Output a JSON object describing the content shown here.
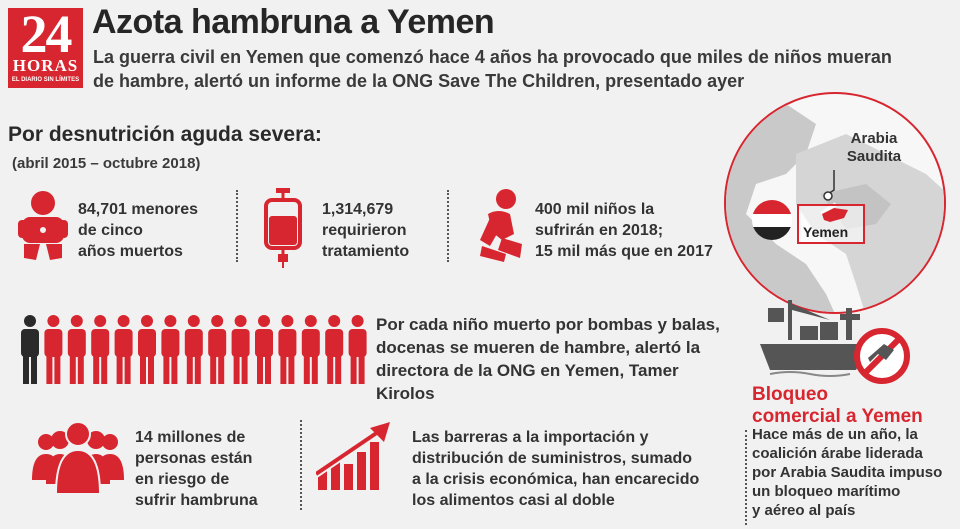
{
  "logo": {
    "number": "24",
    "word": "HORAS",
    "tagline": "EL DIARIO SIN LÍMITES"
  },
  "header": {
    "title": "Azota hambruna a Yemen",
    "lead": "La guerra civil en Yemen que comenzó hace 4 años ha provocado que miles de niños mueran de hambre, alertó un informe de la ONG Save The Children, presentado ayer"
  },
  "section": {
    "title": "Por desnutrición aguda severa:",
    "period": "(abril 2015 – octubre 2018)"
  },
  "stats": [
    {
      "icon": "baby-icon",
      "lines": [
        "84,701 menores",
        "de cinco",
        "años muertos"
      ]
    },
    {
      "icon": "iv-bag-icon",
      "lines": [
        "1,314,679",
        "requirieron",
        "tratamiento"
      ]
    },
    {
      "icon": "child-sitting-icon",
      "lines": [
        "400 mil niños la",
        "sufrirán en 2018;",
        "15 mil más que en 2017"
      ]
    }
  ],
  "people_row": {
    "total_figures": 15,
    "dark_figures": 1,
    "text_lines": [
      "Por cada niño muerto por bombas y balas,",
      "docenas se mueren de hambre, alertó la",
      "directora de la ONG en Yemen, Tamer Kirolos"
    ]
  },
  "map": {
    "label_region": "Arabia Saudita",
    "label_country": "Yemen"
  },
  "blockade": {
    "title_lines": [
      "Bloqueo",
      "comercial a Yemen"
    ],
    "text_lines": [
      "Hace más de un año, la",
      "coalición árabe liderada",
      "por Arabia Saudita impuso",
      "un bloqueo marítimo",
      "y aéreo al país"
    ]
  },
  "bottom": [
    {
      "icon": "crowd-icon",
      "lines": [
        "14 millones de",
        "personas están",
        "en riesgo de",
        "sufrir hambruna"
      ]
    },
    {
      "icon": "rising-chart-icon",
      "lines": [
        "Las barreras a la importación y",
        "distribución de suministros, sumado",
        "a la crisis económica, han encarecido",
        "los alimentos casi al doble"
      ]
    }
  ],
  "colors": {
    "accent": "#d7262f",
    "dark": "#2d2d2d",
    "background": "#f1f1f1"
  }
}
